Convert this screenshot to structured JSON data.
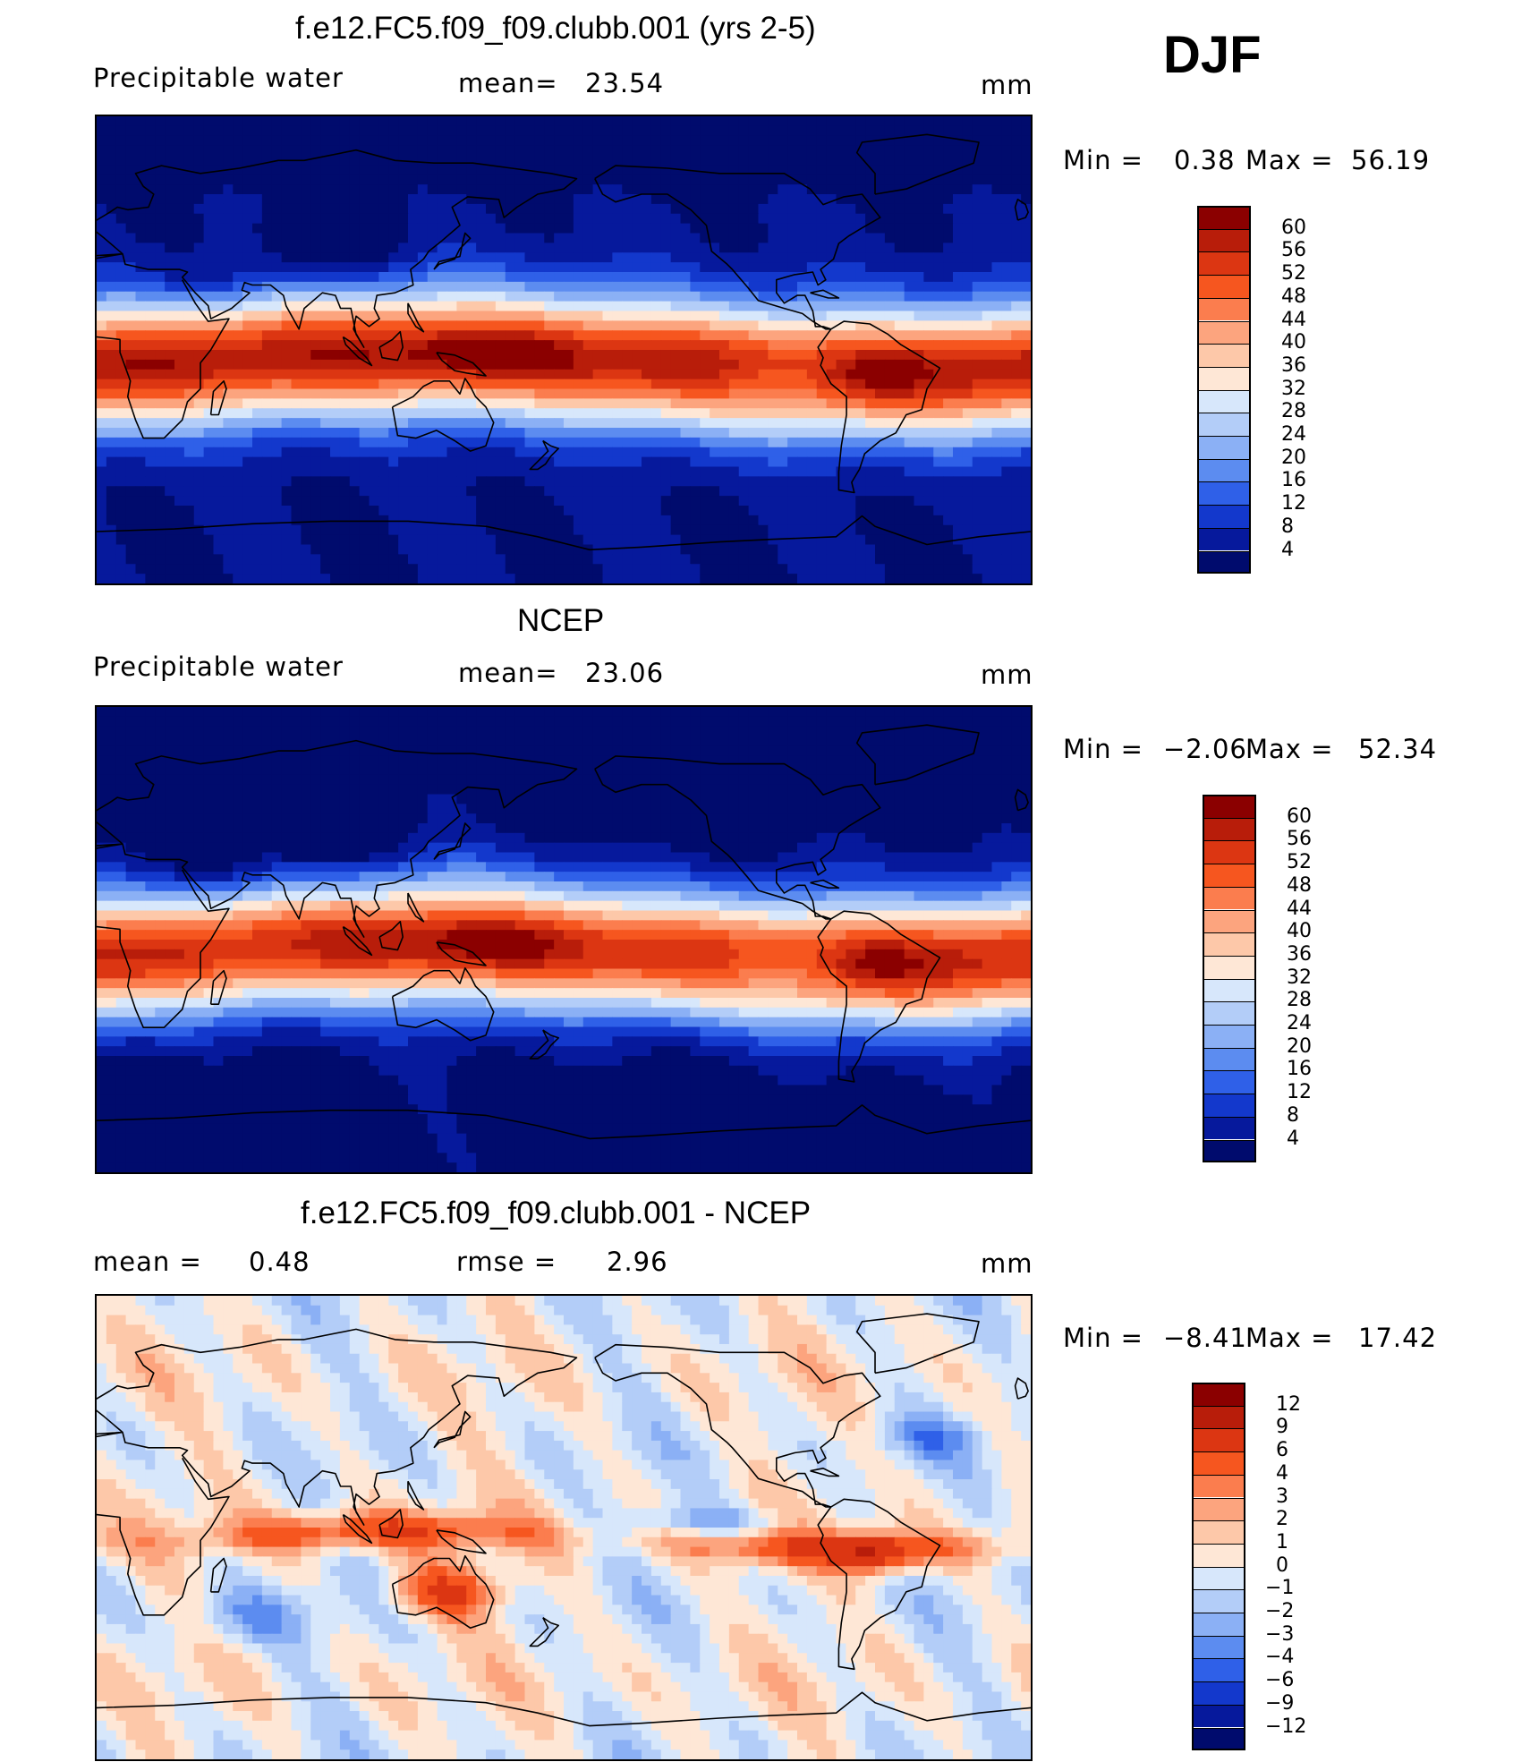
{
  "season": "DJF",
  "chart_data": [
    {
      "type": "heatmap",
      "title": "f.e12.FC5.f09_f09.clubb.001 (yrs 2-5)",
      "variable_label": "Precipitable water",
      "stat_label": "mean=",
      "stat_value": "23.54",
      "units": "mm",
      "min_label": "Min =",
      "min_value": "0.38",
      "max_label": "Max =",
      "max_value": "56.19",
      "colorbar_levels": [
        "60",
        "56",
        "52",
        "48",
        "44",
        "40",
        "36",
        "32",
        "28",
        "24",
        "20",
        "16",
        "12",
        "8",
        "4"
      ],
      "colors": [
        "#8b0000",
        "#b81d0a",
        "#dc3612",
        "#f6561f",
        "#fb7d4e",
        "#fca47e",
        "#fdc8a9",
        "#fee7d6",
        "#d7e7fb",
        "#b3cdf8",
        "#8bb0f5",
        "#5c8cf0",
        "#2f60e8",
        "#1338cc",
        "#06199c",
        "#000b6d"
      ]
    },
    {
      "type": "heatmap",
      "title": "NCEP",
      "variable_label": "Precipitable water",
      "stat_label": "mean=",
      "stat_value": "23.06",
      "units": "mm",
      "min_label": "Min =",
      "min_value": "−2.06",
      "max_label": "Max =",
      "max_value": "52.34",
      "colorbar_levels": [
        "60",
        "56",
        "52",
        "48",
        "44",
        "40",
        "36",
        "32",
        "28",
        "24",
        "20",
        "16",
        "12",
        "8",
        "4"
      ],
      "colors": [
        "#8b0000",
        "#b81d0a",
        "#dc3612",
        "#f6561f",
        "#fb7d4e",
        "#fca47e",
        "#fdc8a9",
        "#fee7d6",
        "#d7e7fb",
        "#b3cdf8",
        "#8bb0f5",
        "#5c8cf0",
        "#2f60e8",
        "#1338cc",
        "#06199c",
        "#000b6d"
      ]
    },
    {
      "type": "heatmap",
      "title": "f.e12.FC5.f09_f09.clubb.001 - NCEP",
      "stat_label": "mean =",
      "stat_value": "0.48",
      "stat2_label": "rmse =",
      "stat2_value": "2.96",
      "units": "mm",
      "min_label": "Min =",
      "min_value": "−8.41",
      "max_label": "Max =",
      "max_value": "17.42",
      "colorbar_levels": [
        "12",
        "9",
        "6",
        "4",
        "3",
        "2",
        "1",
        "0",
        "−1",
        "−2",
        "−3",
        "−4",
        "−6",
        "−9",
        "−12"
      ],
      "colors": [
        "#8b0000",
        "#b81d0a",
        "#dc3612",
        "#f6561f",
        "#fb7d4e",
        "#fca47e",
        "#fdc8a9",
        "#fee7d6",
        "#d7e7fb",
        "#b3cdf8",
        "#8bb0f5",
        "#5c8cf0",
        "#2f60e8",
        "#1338cc",
        "#06199c",
        "#000b6d"
      ]
    }
  ]
}
